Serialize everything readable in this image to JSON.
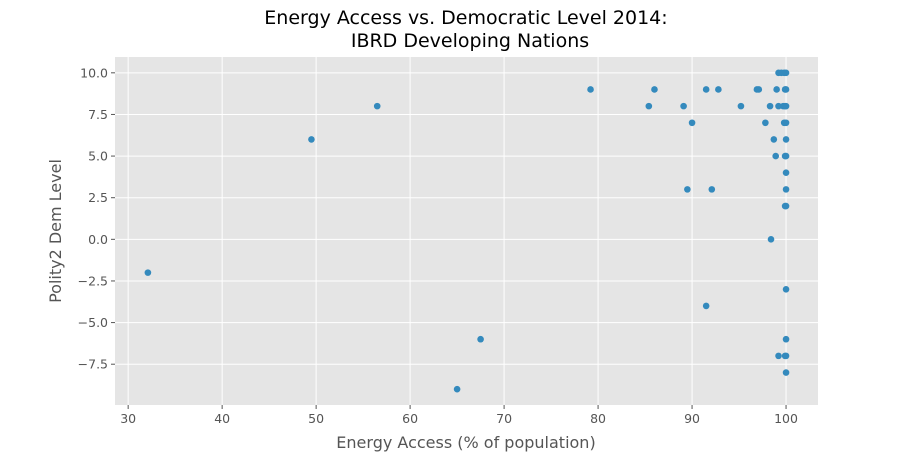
{
  "chart_data": {
    "type": "scatter",
    "title_line1": "Energy Access vs. Democratic Level 2014:",
    "title_line2": "IBRD Developing Nations",
    "xlabel": "Energy Access (% of population)",
    "ylabel": "Polity2 Dem Level",
    "xlim": [
      28.6,
      103.4
    ],
    "ylim": [
      -9.95,
      10.95
    ],
    "x_ticks": [
      30,
      40,
      50,
      60,
      70,
      80,
      90,
      100
    ],
    "y_ticks": [
      -7.5,
      -5.0,
      -2.5,
      0.0,
      2.5,
      5.0,
      7.5,
      10.0
    ],
    "x_tick_labels": [
      "30",
      "40",
      "50",
      "60",
      "70",
      "80",
      "90",
      "100"
    ],
    "y_tick_labels": [
      "−7.5",
      "−5.0",
      "−2.5",
      "0.0",
      "2.5",
      "5.0",
      "7.5",
      "10.0"
    ],
    "grid": true,
    "marker_color": "#348ABD",
    "background_color": "#E5E5E5",
    "points": [
      {
        "x": 32.1,
        "y": -2
      },
      {
        "x": 49.5,
        "y": 6
      },
      {
        "x": 56.5,
        "y": 8
      },
      {
        "x": 65.0,
        "y": -9
      },
      {
        "x": 67.5,
        "y": -6
      },
      {
        "x": 79.2,
        "y": 9
      },
      {
        "x": 85.4,
        "y": 8
      },
      {
        "x": 86.0,
        "y": 9
      },
      {
        "x": 89.1,
        "y": 8
      },
      {
        "x": 89.5,
        "y": 3
      },
      {
        "x": 90.0,
        "y": 7
      },
      {
        "x": 91.5,
        "y": 9
      },
      {
        "x": 91.5,
        "y": -4
      },
      {
        "x": 92.1,
        "y": 3
      },
      {
        "x": 92.8,
        "y": 9
      },
      {
        "x": 95.2,
        "y": 8
      },
      {
        "x": 96.9,
        "y": 9
      },
      {
        "x": 97.1,
        "y": 9
      },
      {
        "x": 97.8,
        "y": 7
      },
      {
        "x": 98.3,
        "y": 8
      },
      {
        "x": 98.4,
        "y": 0
      },
      {
        "x": 98.7,
        "y": 6
      },
      {
        "x": 98.9,
        "y": 5
      },
      {
        "x": 99.0,
        "y": 9
      },
      {
        "x": 99.2,
        "y": 10
      },
      {
        "x": 99.2,
        "y": 8
      },
      {
        "x": 99.2,
        "y": -7
      },
      {
        "x": 99.5,
        "y": 10
      },
      {
        "x": 99.7,
        "y": 8
      },
      {
        "x": 99.8,
        "y": 7
      },
      {
        "x": 99.8,
        "y": 10
      },
      {
        "x": 99.9,
        "y": 9
      },
      {
        "x": 99.9,
        "y": 8
      },
      {
        "x": 99.9,
        "y": 5
      },
      {
        "x": 99.9,
        "y": 2
      },
      {
        "x": 99.9,
        "y": -7
      },
      {
        "x": 100.0,
        "y": 10
      },
      {
        "x": 100.0,
        "y": 9
      },
      {
        "x": 100.0,
        "y": 8
      },
      {
        "x": 100.0,
        "y": 7
      },
      {
        "x": 100.0,
        "y": 6
      },
      {
        "x": 100.0,
        "y": 5
      },
      {
        "x": 100.0,
        "y": 4
      },
      {
        "x": 100.0,
        "y": 3
      },
      {
        "x": 100.0,
        "y": 2
      },
      {
        "x": 100.0,
        "y": -3
      },
      {
        "x": 100.0,
        "y": -6
      },
      {
        "x": 100.0,
        "y": -7
      },
      {
        "x": 100.0,
        "y": -8
      }
    ]
  }
}
